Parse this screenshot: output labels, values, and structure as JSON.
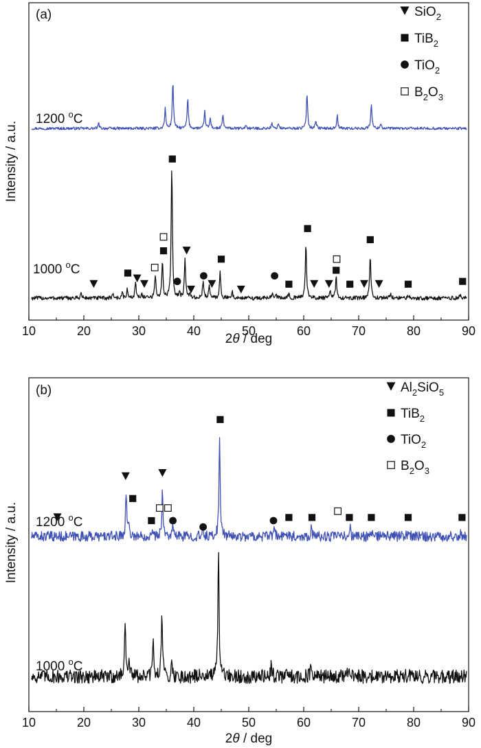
{
  "chart_data": [
    {
      "type": "line",
      "panel_label": "(a)",
      "xlabel_italic": "θ",
      "xlabel_prefix": "2",
      "xlabel_suffix": " / deg",
      "ylabel": "Intensity / a.u.",
      "xlim": [
        10,
        90
      ],
      "x_ticks": [
        10,
        20,
        30,
        40,
        50,
        60,
        70,
        80,
        90
      ],
      "legend": {
        "placement": "top-right",
        "entries": [
          {
            "marker": "triangle-down",
            "name": "SiO",
            "sub": "2"
          },
          {
            "marker": "square-filled",
            "name": "TiB",
            "sub": "2"
          },
          {
            "marker": "circle-filled",
            "name": "TiO",
            "sub": "2"
          },
          {
            "marker": "square-open",
            "name": "B",
            "sub": "2",
            "tail": "O",
            "sub2": "3"
          }
        ]
      },
      "series": [
        {
          "name": "1200 °C",
          "label_main": "1200 ",
          "label_sup": "o",
          "label_unit": "C",
          "color": "#3f51b5",
          "baseline": 0.0,
          "noise": 0.4,
          "peaks": [
            [
              22.7,
              1.5
            ],
            [
              34.8,
              6
            ],
            [
              36.2,
              14
            ],
            [
              38.9,
              9
            ],
            [
              42,
              5
            ],
            [
              43,
              3
            ],
            [
              45.3,
              4
            ],
            [
              49.5,
              1
            ],
            [
              54.2,
              1.5
            ],
            [
              55.4,
              1.5
            ],
            [
              60.6,
              10.5
            ],
            [
              62.2,
              2.5
            ],
            [
              66.1,
              3.8
            ],
            [
              72.3,
              7.5
            ],
            [
              74,
              1.5
            ]
          ]
        },
        {
          "name": "1000 °C",
          "label_main": "1000 ",
          "label_sup": "o",
          "label_unit": "C",
          "color": "#111111",
          "baseline": 0.0,
          "noise": 0.6,
          "peaks": [
            [
              19.5,
              1.5
            ],
            [
              25.3,
              1.5
            ],
            [
              27,
              1.5
            ],
            [
              27.9,
              2.5
            ],
            [
              29.4,
              5
            ],
            [
              30.5,
              1.5
            ],
            [
              33,
              7
            ],
            [
              34.3,
              11
            ],
            [
              36,
              40
            ],
            [
              37.4,
              2
            ],
            [
              38.4,
              12
            ],
            [
              39.3,
              1.5
            ],
            [
              41.7,
              5
            ],
            [
              42.8,
              4
            ],
            [
              44.8,
              8
            ],
            [
              47,
              2
            ],
            [
              54.3,
              2
            ],
            [
              54.9,
              1.5
            ],
            [
              57.3,
              1.5
            ],
            [
              60.4,
              17
            ],
            [
              64.8,
              2
            ],
            [
              65.9,
              6.5
            ],
            [
              72.1,
              13
            ],
            [
              75.8,
              1.5
            ],
            [
              79,
              1
            ],
            [
              88.5,
              1
            ]
          ]
        }
      ],
      "markers": [
        {
          "series": "1200 °C",
          "points": []
        },
        {
          "series": "1000 °C",
          "points": [
            {
              "x": 21.8,
              "level": 5,
              "marker": "triangle-down"
            },
            {
              "x": 28.0,
              "level": 9,
              "marker": "square-filled"
            },
            {
              "x": 29.7,
              "level": 7,
              "marker": "triangle-down"
            },
            {
              "x": 31.0,
              "level": 5,
              "marker": "triangle-down"
            },
            {
              "x": 32.9,
              "level": 11,
              "marker": "square-open"
            },
            {
              "x": 34.5,
              "level": 17,
              "marker": "square-filled"
            },
            {
              "x": 34.5,
              "level": 22,
              "marker": "square-open"
            },
            {
              "x": 36.1,
              "level": 50,
              "marker": "square-filled"
            },
            {
              "x": 37.0,
              "level": 6,
              "marker": "circle-filled"
            },
            {
              "x": 38.7,
              "level": 17,
              "marker": "triangle-down"
            },
            {
              "x": 39.5,
              "level": 3,
              "marker": "triangle-down"
            },
            {
              "x": 41.8,
              "level": 8,
              "marker": "circle-filled"
            },
            {
              "x": 43.3,
              "level": 5,
              "marker": "triangle-down"
            },
            {
              "x": 45.0,
              "level": 14,
              "marker": "square-filled"
            },
            {
              "x": 48.6,
              "level": 3,
              "marker": "triangle-down"
            },
            {
              "x": 54.7,
              "level": 8,
              "marker": "circle-filled"
            },
            {
              "x": 57.3,
              "level": 5,
              "marker": "square-filled"
            },
            {
              "x": 60.7,
              "level": 25,
              "marker": "square-filled"
            },
            {
              "x": 61.9,
              "level": 5,
              "marker": "triangle-down"
            },
            {
              "x": 64.6,
              "level": 5,
              "marker": "triangle-down"
            },
            {
              "x": 65.9,
              "level": 10,
              "marker": "square-filled"
            },
            {
              "x": 66.0,
              "level": 14,
              "marker": "square-open"
            },
            {
              "x": 68.4,
              "level": 5,
              "marker": "square-filled"
            },
            {
              "x": 71.0,
              "level": 5,
              "marker": "triangle-down"
            },
            {
              "x": 72.1,
              "level": 21,
              "marker": "square-filled"
            },
            {
              "x": 73.7,
              "level": 5,
              "marker": "triangle-down"
            },
            {
              "x": 79.0,
              "level": 5,
              "marker": "square-filled"
            },
            {
              "x": 88.9,
              "level": 6,
              "marker": "square-filled"
            }
          ]
        }
      ]
    },
    {
      "type": "line",
      "panel_label": "(b)",
      "xlabel_italic": "θ",
      "xlabel_prefix": "2",
      "xlabel_suffix": " / deg",
      "ylabel": "Intensity / a.u.",
      "xlim": [
        10,
        90
      ],
      "x_ticks": [
        10,
        20,
        30,
        40,
        50,
        60,
        70,
        80,
        90
      ],
      "legend": {
        "placement": "top-right",
        "entries": [
          {
            "marker": "triangle-down",
            "name": "Al",
            "sub": "2",
            "tail": "SiO",
            "sub2": "5"
          },
          {
            "marker": "square-filled",
            "name": "TiB",
            "sub": "2"
          },
          {
            "marker": "circle-filled",
            "name": "TiO",
            "sub": "2"
          },
          {
            "marker": "square-open",
            "name": "B",
            "sub": "2",
            "tail": "O",
            "sub2": "3"
          }
        ]
      },
      "series": [
        {
          "name": "1200 °C",
          "label_main": "1200 ",
          "label_sup": "o",
          "label_unit": "C",
          "color": "#3f51b5",
          "baseline": 0.0,
          "noise": 1.6,
          "peaks": [
            [
              27.7,
              14
            ],
            [
              28.2,
              4
            ],
            [
              32.3,
              2
            ],
            [
              34.3,
              15
            ],
            [
              36.2,
              3
            ],
            [
              41.7,
              2
            ],
            [
              44.7,
              32
            ],
            [
              54.6,
              3
            ],
            [
              57.2,
              2
            ],
            [
              61.4,
              3
            ],
            [
              68.4,
              3
            ],
            [
              72.3,
              1.5
            ],
            [
              79,
              2
            ],
            [
              88.6,
              1.5
            ]
          ]
        },
        {
          "name": "1000 °C",
          "label_main": "1000 ",
          "label_sup": "o",
          "label_unit": "C",
          "color": "#111111",
          "baseline": 0.0,
          "noise": 2.2,
          "peaks": [
            [
              27.5,
              18
            ],
            [
              28.2,
              6
            ],
            [
              32.6,
              11
            ],
            [
              34.2,
              22
            ],
            [
              36,
              4
            ],
            [
              41.6,
              2.5
            ],
            [
              44.5,
              38
            ],
            [
              54.1,
              4
            ],
            [
              57,
              2
            ],
            [
              61.3,
              3
            ],
            [
              68.2,
              3
            ],
            [
              79,
              1.5
            ]
          ]
        }
      ],
      "markers": [
        {
          "series": "1200 °C",
          "points": [
            {
              "x": 15.2,
              "level": 6,
              "marker": "triangle-down"
            },
            {
              "x": 27.6,
              "level": 19,
              "marker": "triangle-down"
            },
            {
              "x": 28.9,
              "level": 12,
              "marker": "square-filled"
            },
            {
              "x": 32.3,
              "level": 5,
              "marker": "square-filled"
            },
            {
              "x": 33.8,
              "level": 9,
              "marker": "square-open"
            },
            {
              "x": 35.3,
              "level": 9,
              "marker": "square-open"
            },
            {
              "x": 34.3,
              "level": 20,
              "marker": "triangle-down"
            },
            {
              "x": 36.2,
              "level": 5,
              "marker": "circle-filled"
            },
            {
              "x": 41.7,
              "level": 3,
              "marker": "circle-filled"
            },
            {
              "x": 44.8,
              "level": 37,
              "marker": "square-filled"
            },
            {
              "x": 54.5,
              "level": 5,
              "marker": "circle-filled"
            },
            {
              "x": 57.3,
              "level": 6,
              "marker": "square-filled"
            },
            {
              "x": 61.5,
              "level": 6,
              "marker": "square-filled"
            },
            {
              "x": 66.2,
              "level": 8,
              "marker": "square-open"
            },
            {
              "x": 68.3,
              "level": 6,
              "marker": "square-filled"
            },
            {
              "x": 72.3,
              "level": 6,
              "marker": "square-filled"
            },
            {
              "x": 79.0,
              "level": 6,
              "marker": "square-filled"
            },
            {
              "x": 88.8,
              "level": 6,
              "marker": "square-filled"
            }
          ]
        },
        {
          "series": "1000 °C",
          "points": []
        }
      ]
    }
  ]
}
